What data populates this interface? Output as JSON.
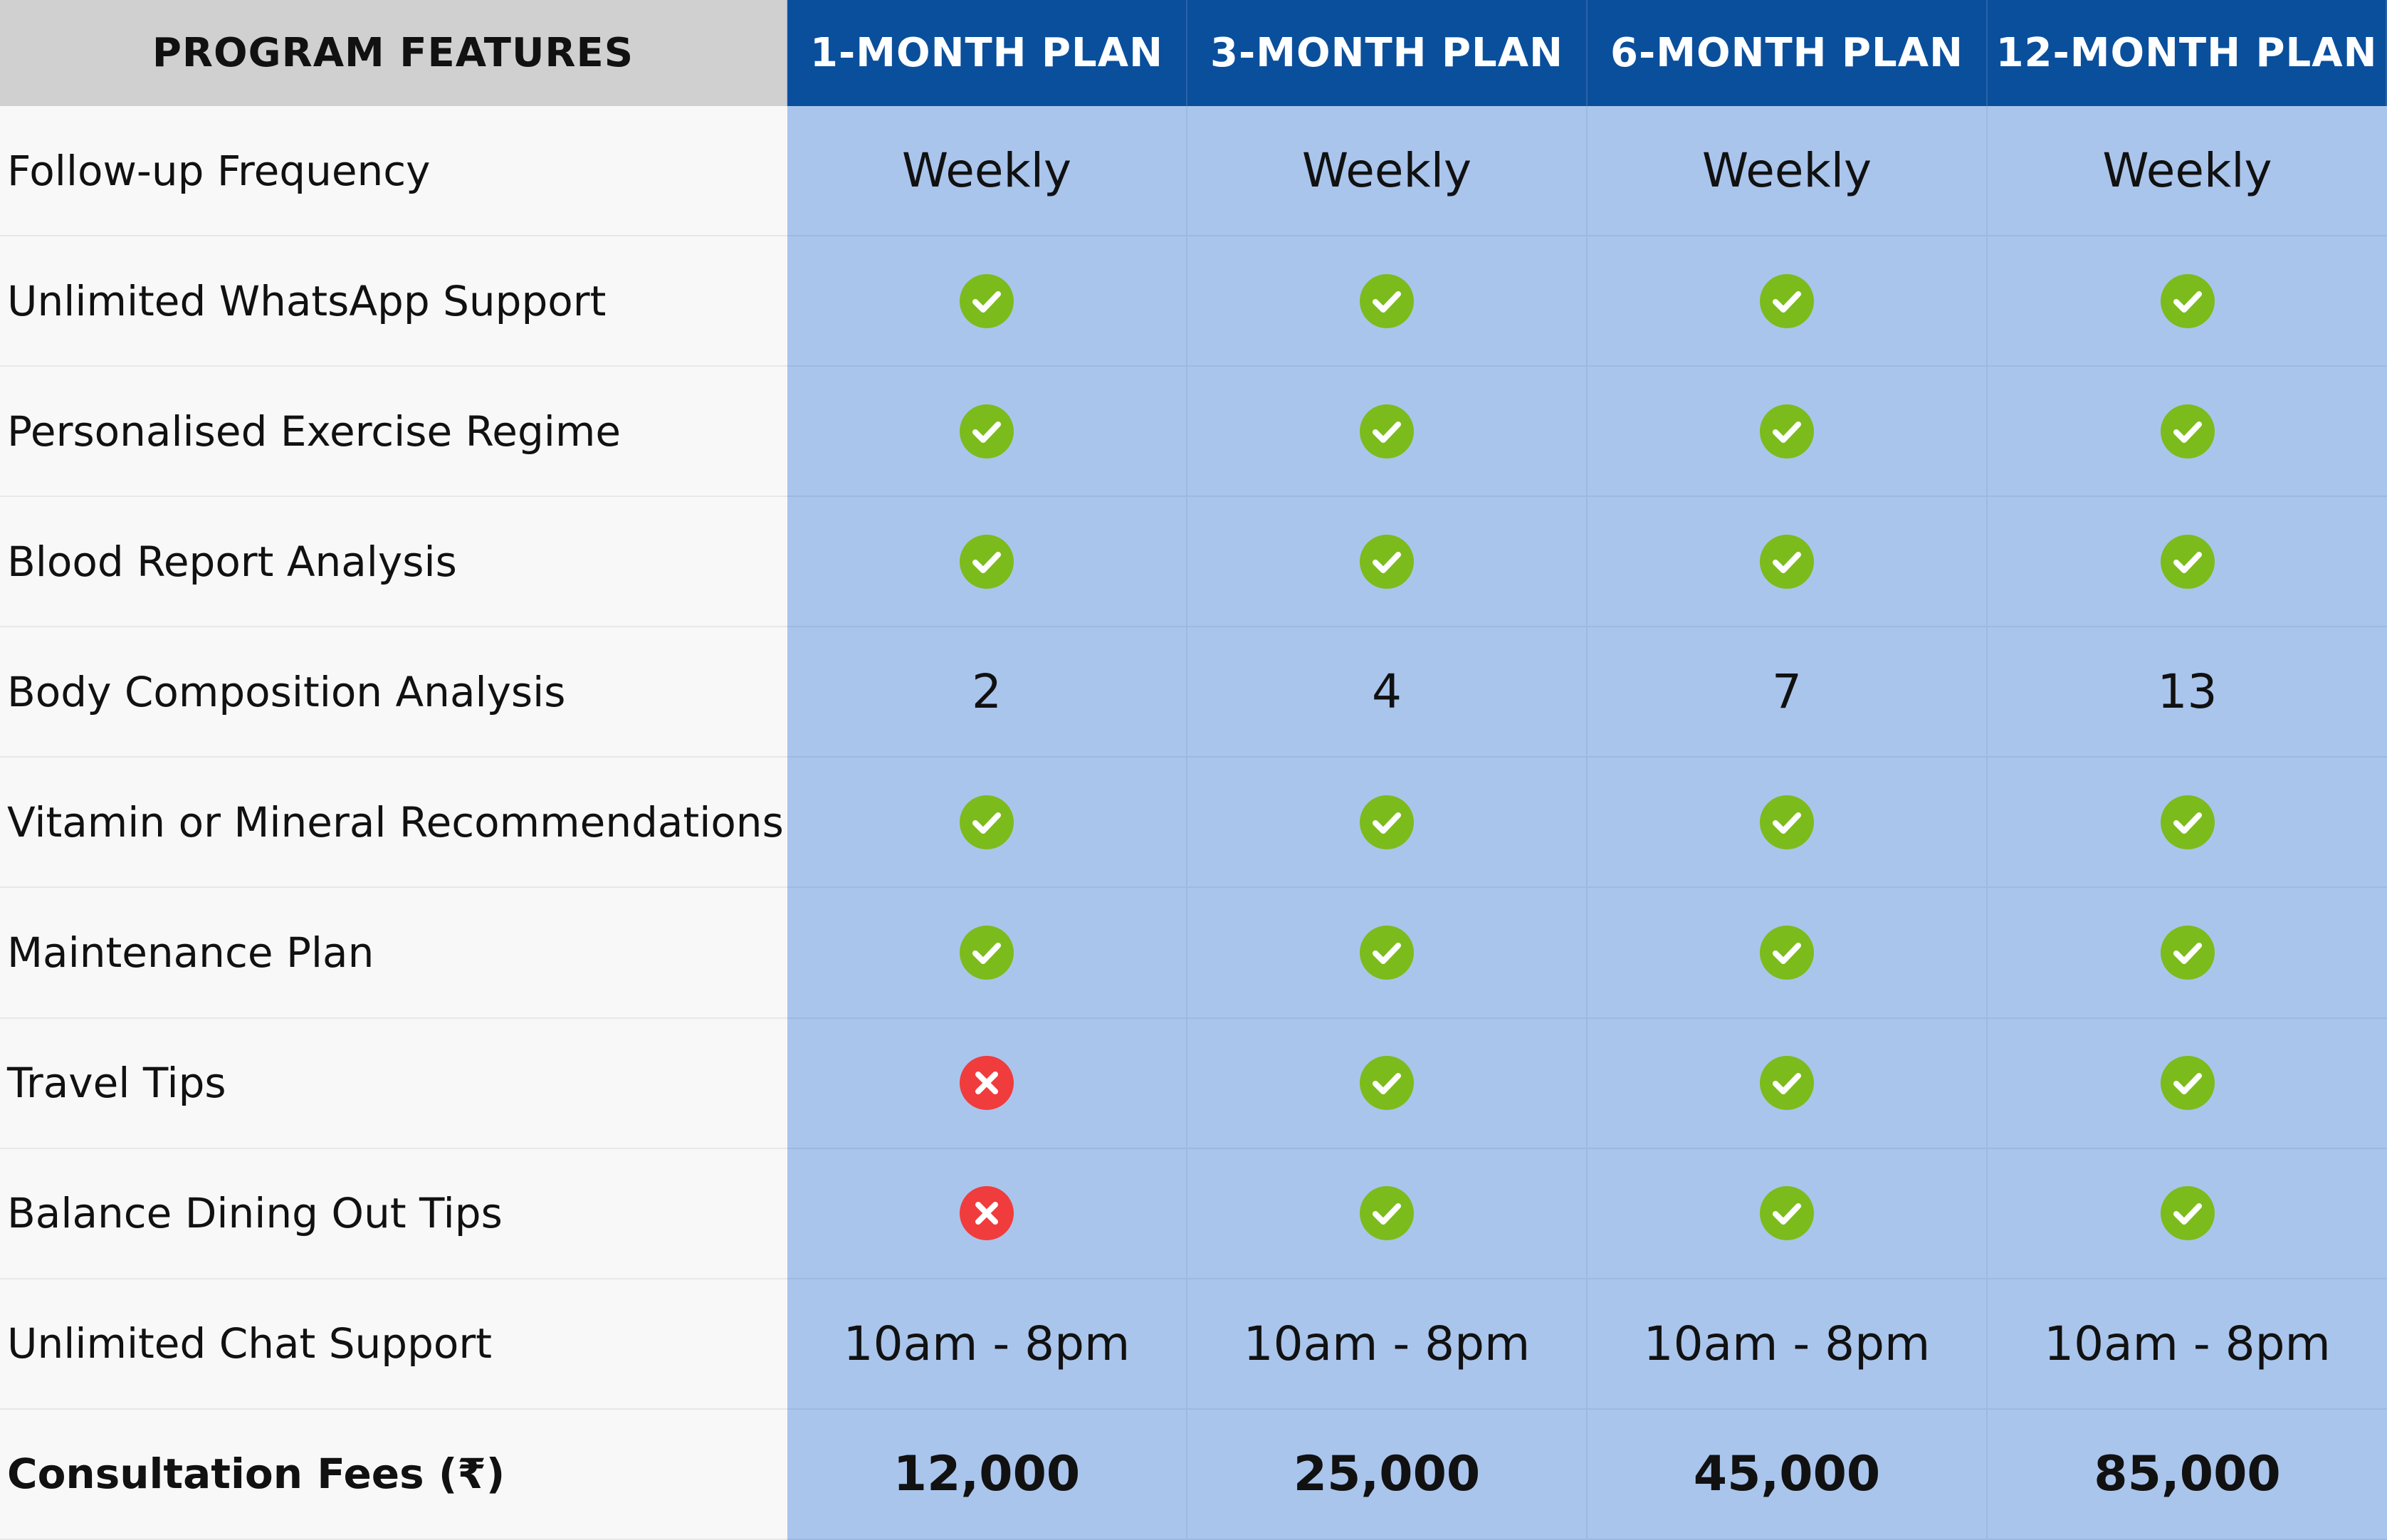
{
  "header": {
    "feature_label": "PROGRAM FEATURES",
    "plans": [
      "1-MONTH PLAN",
      "3-MONTH PLAN",
      "6-MONTH PLAN",
      "12-MONTH PLAN"
    ]
  },
  "rows": [
    {
      "feature": "Follow-up Frequency",
      "values": [
        "Weekly",
        "Weekly",
        "Weekly",
        "Weekly"
      ]
    },
    {
      "feature": "Unlimited WhatsApp Support",
      "values": [
        "check",
        "check",
        "check",
        "check"
      ]
    },
    {
      "feature": "Personalised Exercise Regime",
      "values": [
        "check",
        "check",
        "check",
        "check"
      ]
    },
    {
      "feature": "Blood Report Analysis",
      "values": [
        "check",
        "check",
        "check",
        "check"
      ]
    },
    {
      "feature": "Body Composition Analysis",
      "values": [
        "2",
        "4",
        "7",
        "13"
      ]
    },
    {
      "feature": "Vitamin or Mineral Recommendations",
      "values": [
        "check",
        "check",
        "check",
        "check"
      ]
    },
    {
      "feature": "Maintenance Plan",
      "values": [
        "check",
        "check",
        "check",
        "check"
      ]
    },
    {
      "feature": "Travel Tips",
      "values": [
        "cross",
        "check",
        "check",
        "check"
      ]
    },
    {
      "feature": "Balance Dining Out Tips",
      "values": [
        "cross",
        "check",
        "check",
        "check"
      ]
    },
    {
      "feature": "Unlimited Chat Support",
      "values": [
        "10am - 8pm",
        "10am - 8pm",
        "10am - 8pm",
        "10am - 8pm"
      ]
    },
    {
      "feature": "Consultation Fees (₹)",
      "values": [
        "12,000",
        "25,000",
        "45,000",
        "85,000"
      ],
      "bold": true
    }
  ],
  "icons": {
    "check": "check-circle-icon",
    "cross": "cross-circle-icon"
  },
  "colors": {
    "header_feature_bg": "#d0d0d0",
    "header_plan_bg": "#0a4f9c",
    "value_bg": "#aac5ec",
    "feature_bg": "#f8f8f8",
    "check": "#7cbb1c",
    "cross": "#f03c3c"
  }
}
